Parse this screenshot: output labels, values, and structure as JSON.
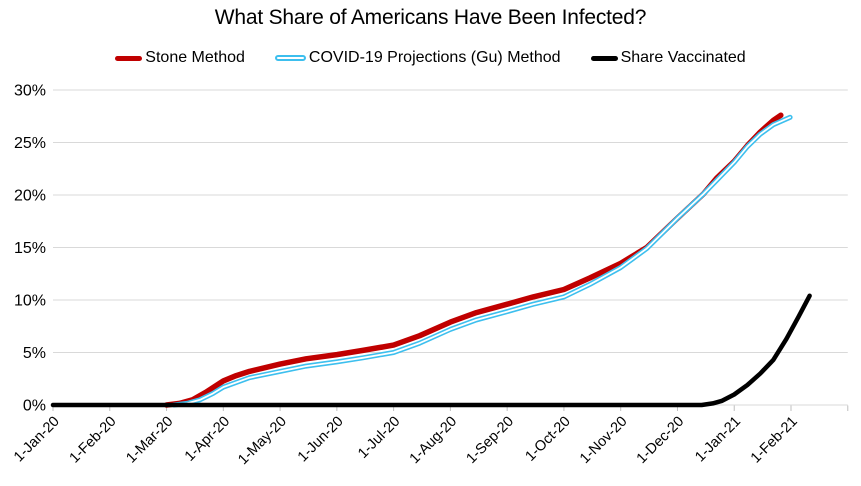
{
  "chart_data": {
    "type": "line",
    "title": "What Share of Americans Have Been Infected?",
    "xlabel": "",
    "ylabel": "",
    "ylim": [
      0,
      30
    ],
    "y_tick_labels": [
      "0%",
      "5%",
      "10%",
      "15%",
      "20%",
      "25%",
      "30%"
    ],
    "x_tick_labels": [
      "1-Jan-20",
      "1-Feb-20",
      "1-Mar-20",
      "1-Apr-20",
      "1-May-20",
      "1-Jun-20",
      "1-Jul-20",
      "1-Aug-20",
      "1-Sep-20",
      "1-Oct-20",
      "1-Nov-20",
      "1-Dec-20",
      "1-Jan-21",
      "1-Feb-21"
    ],
    "grid": "horizontal-only",
    "legend_position": "top-center",
    "colors": {
      "gridline": "#D9D9D9",
      "tick": "#BFBFBF",
      "text": "#000000",
      "background": "#FFFFFF"
    },
    "series": [
      {
        "id": "stone",
        "name": "Stone Method",
        "color": "#C00000",
        "style": "solid",
        "width": 5.5,
        "points": [
          [
            "2020-03-01",
            0.0
          ],
          [
            "2020-03-08",
            0.15
          ],
          [
            "2020-03-15",
            0.5
          ],
          [
            "2020-03-22",
            1.2
          ],
          [
            "2020-04-01",
            2.3
          ],
          [
            "2020-04-08",
            2.8
          ],
          [
            "2020-04-15",
            3.2
          ],
          [
            "2020-05-01",
            3.9
          ],
          [
            "2020-05-15",
            4.4
          ],
          [
            "2020-06-01",
            4.8
          ],
          [
            "2020-06-15",
            5.2
          ],
          [
            "2020-07-01",
            5.7
          ],
          [
            "2020-07-15",
            6.6
          ],
          [
            "2020-08-01",
            7.9
          ],
          [
            "2020-08-15",
            8.8
          ],
          [
            "2020-09-01",
            9.6
          ],
          [
            "2020-09-15",
            10.3
          ],
          [
            "2020-10-01",
            11.0
          ],
          [
            "2020-10-15",
            12.1
          ],
          [
            "2020-11-01",
            13.5
          ],
          [
            "2020-11-15",
            15.0
          ],
          [
            "2020-12-01",
            17.8
          ],
          [
            "2020-12-15",
            20.1
          ],
          [
            "2020-12-22",
            21.6
          ],
          [
            "2021-01-01",
            23.2
          ],
          [
            "2021-01-08",
            24.7
          ],
          [
            "2021-01-15",
            26.0
          ],
          [
            "2021-01-22",
            27.1
          ],
          [
            "2021-01-26",
            27.6
          ]
        ]
      },
      {
        "id": "gu",
        "name": "COVID-19 Projections (Gu) Method",
        "color": "#3DBFEE",
        "style": "outlined",
        "width": 5,
        "points": [
          [
            "2020-03-05",
            0.0
          ],
          [
            "2020-03-12",
            0.15
          ],
          [
            "2020-03-19",
            0.5
          ],
          [
            "2020-03-26",
            1.1
          ],
          [
            "2020-04-01",
            1.7
          ],
          [
            "2020-04-15",
            2.6
          ],
          [
            "2020-05-01",
            3.2
          ],
          [
            "2020-05-15",
            3.7
          ],
          [
            "2020-06-01",
            4.1
          ],
          [
            "2020-06-15",
            4.5
          ],
          [
            "2020-07-01",
            5.0
          ],
          [
            "2020-07-15",
            5.9
          ],
          [
            "2020-08-01",
            7.2
          ],
          [
            "2020-08-15",
            8.1
          ],
          [
            "2020-09-01",
            8.9
          ],
          [
            "2020-09-15",
            9.6
          ],
          [
            "2020-10-01",
            10.3
          ],
          [
            "2020-10-15",
            11.5
          ],
          [
            "2020-11-01",
            13.1
          ],
          [
            "2020-11-15",
            14.9
          ],
          [
            "2020-12-01",
            17.8
          ],
          [
            "2020-12-15",
            20.1
          ],
          [
            "2021-01-01",
            23.1
          ],
          [
            "2021-01-08",
            24.6
          ],
          [
            "2021-01-15",
            25.8
          ],
          [
            "2021-01-22",
            26.7
          ],
          [
            "2021-01-31",
            27.4
          ]
        ]
      },
      {
        "id": "vaccinated",
        "name": "Share Vaccinated",
        "color": "#000000",
        "style": "solid",
        "width": 4.5,
        "points": [
          [
            "2020-01-01",
            0.0
          ],
          [
            "2020-12-14",
            0.0
          ],
          [
            "2020-12-20",
            0.15
          ],
          [
            "2020-12-25",
            0.4
          ],
          [
            "2021-01-01",
            1.0
          ],
          [
            "2021-01-08",
            1.9
          ],
          [
            "2021-01-15",
            3.0
          ],
          [
            "2021-01-22",
            4.3
          ],
          [
            "2021-01-29",
            6.3
          ],
          [
            "2021-02-05",
            8.4
          ],
          [
            "2021-02-11",
            10.4
          ]
        ]
      }
    ]
  }
}
